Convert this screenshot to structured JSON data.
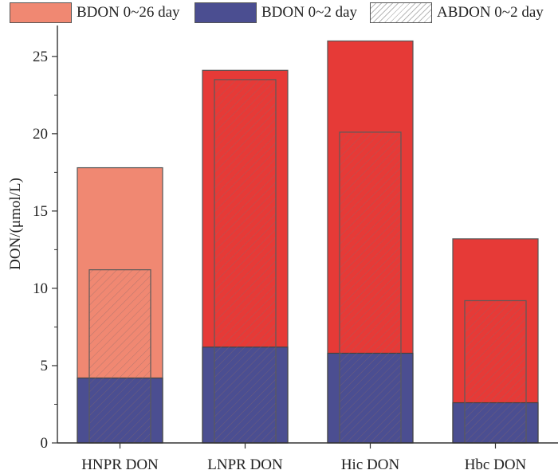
{
  "chart_data": {
    "type": "bar",
    "categories": [
      "HNPR DON",
      "LNPR DON",
      "Hic DON",
      "Hbc DON"
    ],
    "ylabel": "DON/(μmol/L)",
    "ylim": [
      0,
      27
    ],
    "yticks": [
      0,
      5,
      10,
      15,
      20,
      25
    ],
    "series": [
      {
        "name": "BDON 0~26 day",
        "values": [
          17.8,
          24.1,
          26.0,
          13.2
        ]
      },
      {
        "name": "BDON 0~2 day",
        "values": [
          4.2,
          6.2,
          5.8,
          2.6
        ]
      },
      {
        "name": "ABDON 0~2 day",
        "values": [
          11.2,
          23.5,
          20.1,
          9.2
        ]
      }
    ],
    "colors": {
      "bdon26_first": "#f08872",
      "bdon26_others": "#e63a37",
      "bdon2": "#4b4e91",
      "abdon_hatch": "#b8a8a8"
    },
    "legend_position": "top",
    "grid": false
  }
}
